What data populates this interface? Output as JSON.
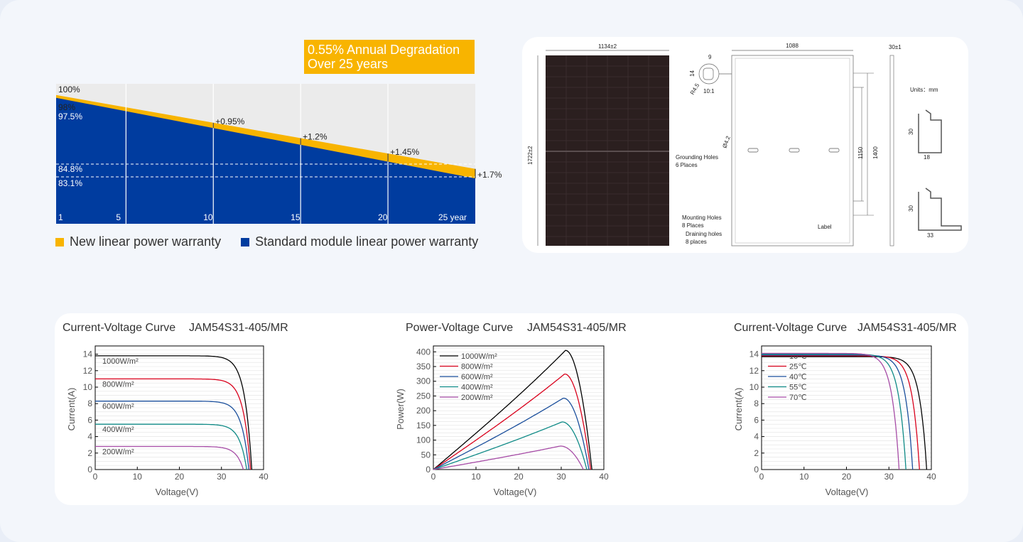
{
  "warranty": {
    "banner_line1": "0.55% Annual Degradation",
    "banner_line2": "Over 25 years",
    "top_label": "100%",
    "start_new": "98%",
    "start_std": "97.5%",
    "ref_high": "84.8%",
    "ref_low": "83.1%",
    "gaps": [
      {
        "year": 10,
        "label": "+0.95%"
      },
      {
        "year": 15,
        "label": "+1.2%"
      },
      {
        "year": 20,
        "label": "+1.45%"
      },
      {
        "year": 25,
        "label": "+1.7%"
      }
    ],
    "xticks": [
      "1",
      "5",
      "10",
      "15",
      "20",
      "25 year"
    ],
    "legend_new": "New linear power warranty",
    "legend_std": "Standard module linear power warranty",
    "colors": {
      "new": "#f8b400",
      "std": "#003c9f",
      "bg": "#ebebeb"
    },
    "chart_data": {
      "type": "area",
      "x": [
        1,
        25
      ],
      "series": [
        {
          "name": "New linear power warranty",
          "values": [
            98,
            84.8
          ]
        },
        {
          "name": "Standard module linear power warranty",
          "values": [
            97.5,
            83.1
          ]
        }
      ],
      "ylim": [
        75,
        100
      ]
    }
  },
  "drawing": {
    "dim_width": "1134±2",
    "dim_height": "1722±2",
    "dim_inner": "1088",
    "dim_thick": "30±1",
    "dim_1150": "1150",
    "dim_1400": "1400",
    "detail_9": "9",
    "detail_14": "14",
    "detail_r": "R4.5",
    "detail_scale": "10:1",
    "hole_d": "Ø4.2",
    "grounding_1": "Grounding Holes",
    "grounding_2": "6 Places",
    "mounting_1": "Mounting Holes",
    "mounting_2": "8 Places",
    "draining_1": "Draining holes",
    "draining_2": "8 places",
    "label": "Label",
    "units": "Units：mm",
    "p1_h": "30",
    "p1_w": "18",
    "p2_h": "30",
    "p2_w": "33"
  },
  "charts": [
    {
      "title": "Current-Voltage Curve",
      "model": "JAM54S31-405/MR",
      "chart_data": {
        "type": "line",
        "xlabel": "Voltage(V)",
        "ylabel": "Current(A)",
        "xlim": [
          0,
          40
        ],
        "ylim": [
          0,
          15
        ],
        "xticks": [
          0,
          10,
          20,
          30,
          40
        ],
        "yticks": [
          0,
          2,
          4,
          6,
          8,
          10,
          12,
          14
        ],
        "legend_position": "inline-left",
        "series": [
          {
            "name": "1000W/m²",
            "color": "#000000",
            "isc": 13.8,
            "voc": 37.2
          },
          {
            "name": "800W/m²",
            "color": "#d9001b",
            "isc": 11.0,
            "voc": 36.9
          },
          {
            "name": "600W/m²",
            "color": "#1b4f9c",
            "isc": 8.3,
            "voc": 36.5
          },
          {
            "name": "400W/m²",
            "color": "#0e8a86",
            "isc": 5.5,
            "voc": 36.0
          },
          {
            "name": "200W/m²",
            "color": "#a64ca6",
            "isc": 2.8,
            "voc": 35.2
          }
        ]
      }
    },
    {
      "title": "Power-Voltage Curve",
      "model": "JAM54S31-405/MR",
      "chart_data": {
        "type": "line",
        "xlabel": "Voltage(V)",
        "ylabel": "Power(W)",
        "xlim": [
          0,
          40
        ],
        "ylim": [
          0,
          420
        ],
        "xticks": [
          0,
          10,
          20,
          30,
          40
        ],
        "yticks": [
          0,
          50,
          100,
          150,
          200,
          250,
          300,
          350,
          400
        ],
        "legend_position": "top-left",
        "series": [
          {
            "name": "1000W/m²",
            "color": "#000000",
            "pmax": 405,
            "vmp": 31.0,
            "voc": 37.2
          },
          {
            "name": "800W/m²",
            "color": "#d9001b",
            "pmax": 325,
            "vmp": 30.8,
            "voc": 36.9
          },
          {
            "name": "600W/m²",
            "color": "#1b4f9c",
            "pmax": 243,
            "vmp": 30.5,
            "voc": 36.5
          },
          {
            "name": "400W/m²",
            "color": "#0e8a86",
            "pmax": 162,
            "vmp": 30.2,
            "voc": 36.0
          },
          {
            "name": "200W/m²",
            "color": "#a64ca6",
            "pmax": 80,
            "vmp": 29.8,
            "voc": 35.2
          }
        ]
      }
    },
    {
      "title": "Current-Voltage Curve",
      "model": "JAM54S31-405/MR",
      "chart_data": {
        "type": "line",
        "xlabel": "Voltage(V)",
        "ylabel": "Current(A)",
        "xlim": [
          0,
          40
        ],
        "ylim": [
          0,
          15
        ],
        "xticks": [
          0,
          10,
          20,
          30,
          40
        ],
        "yticks": [
          0,
          2,
          4,
          6,
          8,
          10,
          12,
          14
        ],
        "legend_position": "top-left",
        "series": [
          {
            "name": "10℃",
            "color": "#000000",
            "isc": 13.7,
            "voc": 38.9
          },
          {
            "name": "25℃",
            "color": "#d9001b",
            "isc": 13.8,
            "voc": 37.2
          },
          {
            "name": "40℃",
            "color": "#1b4f9c",
            "isc": 13.9,
            "voc": 35.6
          },
          {
            "name": "55℃",
            "color": "#0e8a86",
            "isc": 14.0,
            "voc": 34.0
          },
          {
            "name": "70℃",
            "color": "#a64ca6",
            "isc": 14.1,
            "voc": 32.4
          }
        ]
      }
    }
  ]
}
